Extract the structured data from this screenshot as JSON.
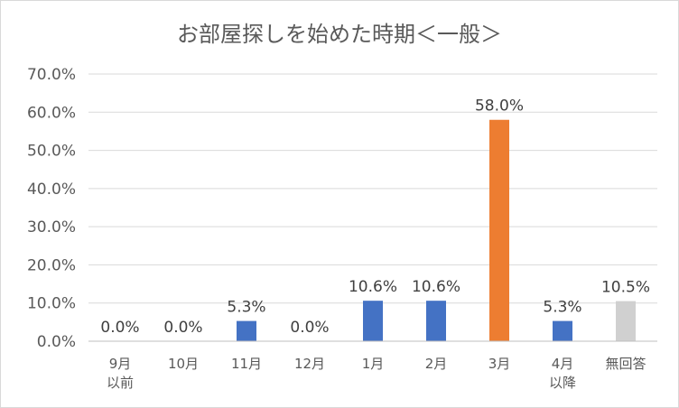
{
  "chart_data": {
    "type": "bar",
    "title": "お部屋探しを始めた時期＜一般＞",
    "xlabel": "",
    "ylabel": "",
    "ylim": [
      0,
      70
    ],
    "yticks": [
      "0.0%",
      "10.0%",
      "20.0%",
      "30.0%",
      "40.0%",
      "50.0%",
      "60.0%",
      "70.0%"
    ],
    "grid": true,
    "legend": "none",
    "categories": [
      [
        "9月",
        "以前"
      ],
      [
        "10月"
      ],
      [
        "11月"
      ],
      [
        "12月"
      ],
      [
        "1月"
      ],
      [
        "2月"
      ],
      [
        "3月"
      ],
      [
        "4月",
        "以降"
      ],
      [
        "無回答"
      ]
    ],
    "values": [
      0.0,
      0.0,
      5.3,
      0.0,
      10.6,
      10.6,
      58.0,
      5.3,
      10.5
    ],
    "value_labels": [
      "0.0%",
      "0.0%",
      "5.3%",
      "0.0%",
      "10.6%",
      "10.6%",
      "58.0%",
      "5.3%",
      "10.5%"
    ],
    "colors": [
      "#4472c4",
      "#4472c4",
      "#4472c4",
      "#4472c4",
      "#4472c4",
      "#4472c4",
      "#ed7d31",
      "#4472c4",
      "#d0d0d0"
    ]
  }
}
